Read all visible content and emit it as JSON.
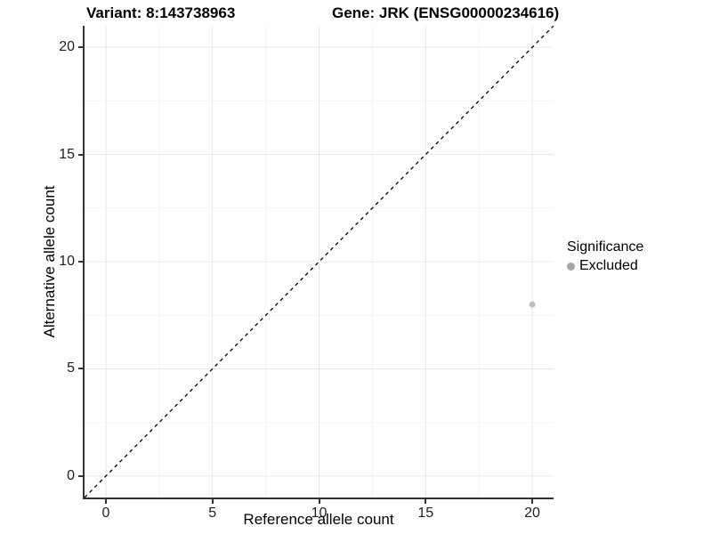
{
  "chart_data": {
    "type": "scatter",
    "titles": {
      "variant": "Variant: 8:143738963",
      "gene": "Gene: JRK (ENSG00000234616)"
    },
    "xlabel": "Reference allele count",
    "ylabel": "Alternative allele count",
    "xlim": [
      -1,
      21
    ],
    "ylim": [
      -1,
      21
    ],
    "x_ticks": [
      0,
      5,
      10,
      15,
      20
    ],
    "y_ticks": [
      0,
      5,
      10,
      15,
      20
    ],
    "x_minor_ticks": [
      2.5,
      7.5,
      12.5,
      17.5
    ],
    "y_minor_ticks": [
      2.5,
      7.5,
      12.5,
      17.5
    ],
    "grid": {
      "on": true,
      "major_color": "#e8e8e8",
      "minor_color": "#f4f4f4"
    },
    "identity_line": {
      "style": "dashed",
      "slope": 1,
      "intercept": 0,
      "color": "#000000"
    },
    "series": [
      {
        "name": "Excluded",
        "color": "#c0c0c0",
        "points": [
          {
            "x": 20,
            "y": 8
          }
        ]
      }
    ],
    "legend": {
      "title": "Significance",
      "position": "right",
      "items": [
        {
          "label": "Excluded",
          "color": "#a6a6a6"
        }
      ]
    },
    "axis_color": "#333333",
    "tick_label_color": "#1f1f1f"
  }
}
